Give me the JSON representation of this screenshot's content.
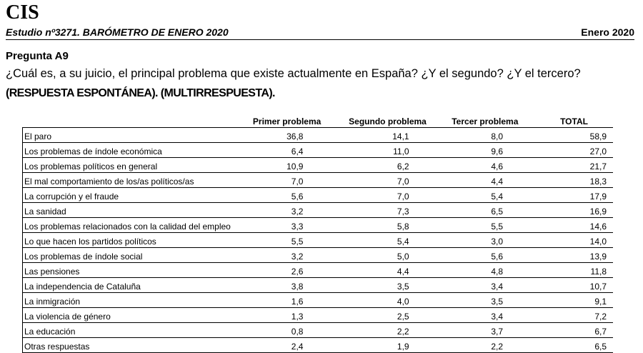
{
  "header": {
    "logo": "CIS",
    "study_title": "Estudio nº3271. BARÓMETRO DE ENERO 2020",
    "study_date": "Enero 2020"
  },
  "question": {
    "label": "Pregunta A9",
    "text": "¿Cuál es, a su juicio, el principal problema que existe actualmente en España? ¿Y el segundo? ¿Y el tercero?",
    "note": "(RESPUESTA ESPONTÁNEA). (MULTIRRESPUESTA)."
  },
  "table": {
    "columns": [
      "",
      "Primer problema",
      "Segundo problema",
      "Tercer problema",
      "TOTAL"
    ],
    "rows": [
      {
        "label": "El paro",
        "primer": "36,8",
        "segundo": "14,1",
        "tercer": "8,0",
        "total": "58,9"
      },
      {
        "label": "Los problemas de índole económica",
        "primer": "6,4",
        "segundo": "11,0",
        "tercer": "9,6",
        "total": "27,0"
      },
      {
        "label": "Los problemas políticos en general",
        "primer": "10,9",
        "segundo": "6,2",
        "tercer": "4,6",
        "total": "21,7"
      },
      {
        "label": "El mal comportamiento de los/as políticos/as",
        "primer": "7,0",
        "segundo": "7,0",
        "tercer": "4,4",
        "total": "18,3"
      },
      {
        "label": "La corrupción y el fraude",
        "primer": "5,6",
        "segundo": "7,0",
        "tercer": "5,4",
        "total": "17,9"
      },
      {
        "label": "La sanidad",
        "primer": "3,2",
        "segundo": "7,3",
        "tercer": "6,5",
        "total": "16,9"
      },
      {
        "label": "Los problemas relacionados con la calidad del empleo",
        "primer": "3,3",
        "segundo": "5,8",
        "tercer": "5,5",
        "total": "14,6"
      },
      {
        "label": "Lo que hacen los partidos políticos",
        "primer": "5,5",
        "segundo": "5,4",
        "tercer": "3,0",
        "total": "14,0"
      },
      {
        "label": "Los problemas de índole social",
        "primer": "3,2",
        "segundo": "5,0",
        "tercer": "5,6",
        "total": "13,9"
      },
      {
        "label": "Las pensiones",
        "primer": "2,6",
        "segundo": "4,4",
        "tercer": "4,8",
        "total": "11,8"
      },
      {
        "label": "La independencia de Cataluña",
        "primer": "3,8",
        "segundo": "3,5",
        "tercer": "3,4",
        "total": "10,7"
      },
      {
        "label": "La inmigración",
        "primer": "1,6",
        "segundo": "4,0",
        "tercer": "3,5",
        "total": "9,1"
      },
      {
        "label": "La violencia de género",
        "primer": "1,3",
        "segundo": "2,5",
        "tercer": "3,4",
        "total": "7,2"
      },
      {
        "label": "La educación",
        "primer": "0,8",
        "segundo": "2,2",
        "tercer": "3,7",
        "total": "6,7"
      },
      {
        "label": "Otras respuestas",
        "primer": "2,4",
        "segundo": "1,9",
        "tercer": "2,2",
        "total": "6,5"
      }
    ]
  }
}
